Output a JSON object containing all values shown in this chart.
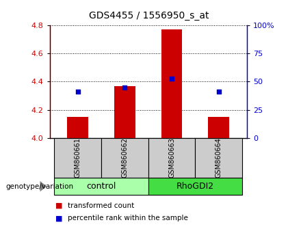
{
  "title": "GDS4455 / 1556950_s_at",
  "samples": [
    "GSM860661",
    "GSM860662",
    "GSM860663",
    "GSM860664"
  ],
  "bar_values": [
    4.15,
    4.37,
    4.77,
    4.15
  ],
  "bar_base": 4.0,
  "percentile_values": [
    4.33,
    4.36,
    4.42,
    4.33
  ],
  "ylim_left": [
    4.0,
    4.8
  ],
  "ylim_right": [
    0,
    100
  ],
  "yticks_left": [
    4.0,
    4.2,
    4.4,
    4.6,
    4.8
  ],
  "yticks_right": [
    0,
    25,
    50,
    75,
    100
  ],
  "ytick_labels_right": [
    "0",
    "25",
    "50",
    "75",
    "100%"
  ],
  "bar_color": "#CC0000",
  "percentile_color": "#0000CC",
  "groups": [
    {
      "label": "control",
      "samples": [
        0,
        1
      ],
      "color": "#AAFFAA"
    },
    {
      "label": "RhoGDI2",
      "samples": [
        2,
        3
      ],
      "color": "#44DD44"
    }
  ],
  "sample_label_color": "#CCCCCC",
  "legend_items": [
    {
      "color": "#CC0000",
      "label": "transformed count"
    },
    {
      "color": "#0000CC",
      "label": "percentile rank within the sample"
    }
  ],
  "group_label": "genotype/variation",
  "bar_width": 0.45,
  "plot_bg": "#FFFFFF"
}
